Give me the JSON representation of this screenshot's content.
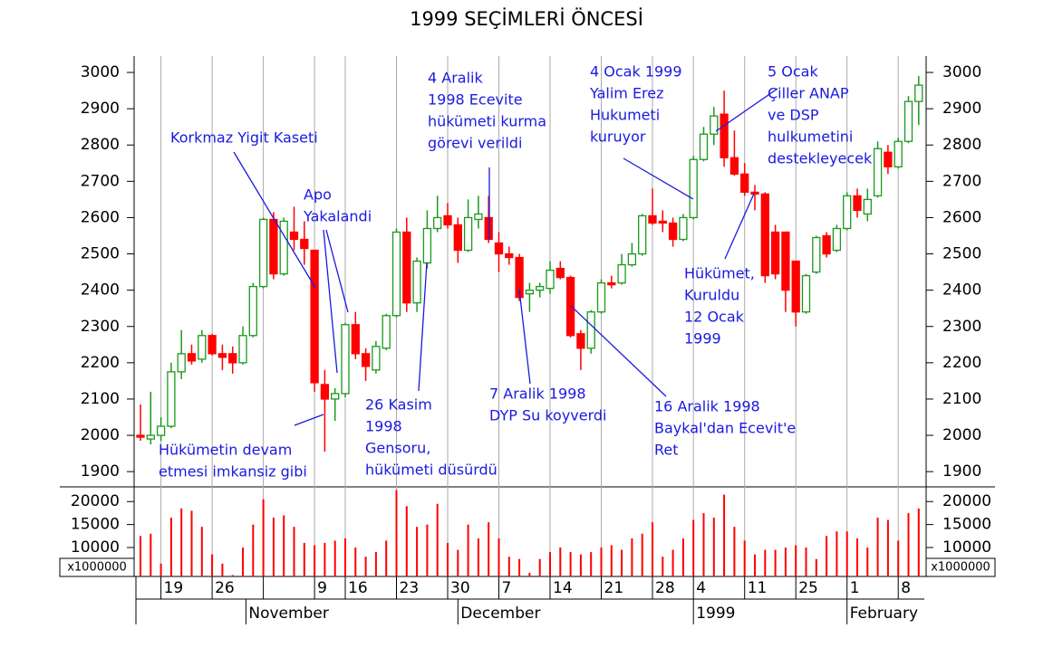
{
  "chart_data": {
    "type": "candlestick",
    "title": "1999 SEÇİMLERİ ÖNCESİ",
    "up_color": "#1a9a1a",
    "down_color": "#ff0000",
    "annotation_color": "#1a1ae0",
    "open": [
      2000,
      1990,
      2000,
      2025,
      2175,
      2225,
      2210,
      2275,
      2225,
      2225,
      2200,
      2275,
      2410,
      2595,
      2445,
      2560,
      2540,
      2510,
      2140,
      2100,
      2115,
      2305,
      2225,
      2180,
      2240,
      2330,
      2560,
      2365,
      2475,
      2570,
      2605,
      2580,
      2510,
      2595,
      2600,
      2530,
      2500,
      2490,
      2390,
      2400,
      2405,
      2460,
      2435,
      2280,
      2240,
      2340,
      2420,
      2420,
      2470,
      2500,
      2605,
      2590,
      2585,
      2540,
      2600,
      2760,
      2830,
      2885,
      2765,
      2720,
      2670,
      2665,
      2560,
      2560,
      2480,
      2340,
      2450,
      2550,
      2510,
      2570,
      2660,
      2610,
      2660,
      2780,
      2740,
      2810,
      2920
    ],
    "high": [
      2085,
      2120,
      2050,
      2200,
      2290,
      2250,
      2290,
      2280,
      2250,
      2245,
      2300,
      2420,
      2600,
      2615,
      2600,
      2630,
      2590,
      2510,
      2180,
      2130,
      2310,
      2340,
      2240,
      2260,
      2335,
      2570,
      2600,
      2490,
      2620,
      2660,
      2640,
      2600,
      2650,
      2660,
      2660,
      2560,
      2520,
      2500,
      2420,
      2420,
      2480,
      2480,
      2440,
      2290,
      2345,
      2430,
      2440,
      2500,
      2530,
      2610,
      2680,
      2620,
      2600,
      2610,
      2770,
      2850,
      2905,
      2950,
      2840,
      2750,
      2690,
      2670,
      2580,
      2560,
      2480,
      2445,
      2550,
      2560,
      2580,
      2670,
      2680,
      2680,
      2810,
      2800,
      2820,
      2935,
      2990
    ],
    "low": [
      1985,
      1975,
      1985,
      2020,
      2155,
      2195,
      2200,
      2220,
      2180,
      2170,
      2195,
      2270,
      2405,
      2430,
      2440,
      2510,
      2470,
      2120,
      1955,
      2040,
      2105,
      2210,
      2150,
      2170,
      2235,
      2325,
      2340,
      2340,
      2460,
      2560,
      2570,
      2475,
      2505,
      2570,
      2530,
      2450,
      2470,
      2370,
      2340,
      2380,
      2390,
      2430,
      2270,
      2180,
      2225,
      2335,
      2405,
      2415,
      2465,
      2495,
      2580,
      2560,
      2520,
      2535,
      2595,
      2755,
      2800,
      2740,
      2715,
      2660,
      2620,
      2420,
      2430,
      2340,
      2300,
      2335,
      2445,
      2490,
      2505,
      2565,
      2600,
      2590,
      2655,
      2720,
      2735,
      2805,
      2855
    ],
    "close": [
      1995,
      2000,
      2025,
      2175,
      2225,
      2205,
      2275,
      2225,
      2215,
      2200,
      2275,
      2410,
      2595,
      2445,
      2590,
      2540,
      2515,
      2145,
      2100,
      2115,
      2305,
      2225,
      2190,
      2245,
      2330,
      2560,
      2365,
      2480,
      2570,
      2600,
      2580,
      2510,
      2600,
      2610,
      2540,
      2500,
      2490,
      2380,
      2400,
      2410,
      2455,
      2435,
      2275,
      2240,
      2340,
      2420,
      2415,
      2470,
      2500,
      2605,
      2585,
      2585,
      2540,
      2600,
      2760,
      2830,
      2880,
      2765,
      2720,
      2670,
      2665,
      2440,
      2445,
      2400,
      2340,
      2440,
      2545,
      2500,
      2570,
      2660,
      2620,
      2650,
      2790,
      2740,
      2810,
      2920,
      2965
    ],
    "ylim": [
      1858,
      3045
    ],
    "yticks": [
      1900,
      2000,
      2100,
      2200,
      2300,
      2400,
      2500,
      2600,
      2700,
      2800,
      2900,
      3000
    ],
    "volume": {
      "values": [
        12500,
        13000,
        6500,
        16500,
        18500,
        18000,
        14500,
        8500,
        6500,
        4000,
        10000,
        15000,
        20500,
        16500,
        17000,
        14500,
        11000,
        10500,
        11000,
        11500,
        12000,
        10000,
        8000,
        9000,
        11500,
        22500,
        19000,
        14500,
        15000,
        19500,
        11000,
        9500,
        15000,
        12000,
        15500,
        12000,
        8000,
        7500,
        4500,
        7500,
        9000,
        10000,
        9000,
        8500,
        9000,
        10000,
        10500,
        9500,
        12000,
        13000,
        15500,
        8000,
        9500,
        12000,
        16000,
        17500,
        16500,
        21500,
        14500,
        11500,
        8500,
        9500,
        9500,
        10000,
        10500,
        10000,
        7500,
        12500,
        13500,
        13500,
        12000,
        10000,
        16500,
        16000,
        11500,
        17500,
        18500
      ],
      "color": "#ff0000",
      "ylim": [
        3700,
        23200
      ],
      "yticks": [
        10000,
        15000,
        20000
      ],
      "unit_label": "x1000000"
    },
    "xticks": [
      {
        "value": 2,
        "label": "19"
      },
      {
        "value": 7,
        "label": "26"
      },
      {
        "value": 17,
        "label": "9"
      },
      {
        "value": 20,
        "label": "16"
      },
      {
        "value": 25,
        "label": "23"
      },
      {
        "value": 30,
        "label": "30"
      },
      {
        "value": 35,
        "label": "7"
      },
      {
        "value": 40,
        "label": "14"
      },
      {
        "value": 45,
        "label": "21"
      },
      {
        "value": 50,
        "label": "28"
      },
      {
        "value": 54,
        "label": "4"
      },
      {
        "value": 59,
        "label": "11"
      },
      {
        "value": 64,
        "label": "25"
      },
      {
        "value": 69,
        "label": "1"
      },
      {
        "value": 74,
        "label": "8"
      }
    ],
    "xticks_unlabeled": [
      12
    ],
    "month_ticks": [
      {
        "value": 10.3,
        "label": "November"
      },
      {
        "value": 31,
        "label": "December"
      },
      {
        "value": 54,
        "label": "1999"
      },
      {
        "value": 69,
        "label": "February"
      }
    ],
    "annotations": [
      {
        "lines": [
          "Korkmaz Yigit Kaseti"
        ]
      },
      {
        "lines": [
          "Apo",
          "Yakalandi"
        ]
      },
      {
        "lines": [
          "Hükümetin devam",
          "etmesi imkansiz gibi"
        ]
      },
      {
        "lines": [
          "26 Kasim",
          "1998",
          "Gensoru,",
          "hükümeti düsürdü"
        ]
      },
      {
        "lines": [
          "4 Aralik",
          "1998 Ecevite",
          "hükümeti kurma",
          "görevi verildi"
        ]
      },
      {
        "lines": [
          "7 Aralik 1998",
          "DYP Su koyverdi"
        ]
      },
      {
        "lines": [
          "16 Aralik 1998",
          "Baykal'dan Ecevit'e",
          "Ret"
        ]
      },
      {
        "lines": [
          "4 Ocak 1999",
          "Yalim Erez",
          "Hukumeti",
          "kuruyor"
        ]
      },
      {
        "lines": [
          "5 Ocak",
          "Çiller ANAP",
          "ve DSP",
          "hulkumetini",
          "destekleyecek"
        ]
      },
      {
        "lines": [
          "Hükümet,",
          "Kuruldu",
          "12 Ocak",
          "1999"
        ]
      }
    ]
  }
}
